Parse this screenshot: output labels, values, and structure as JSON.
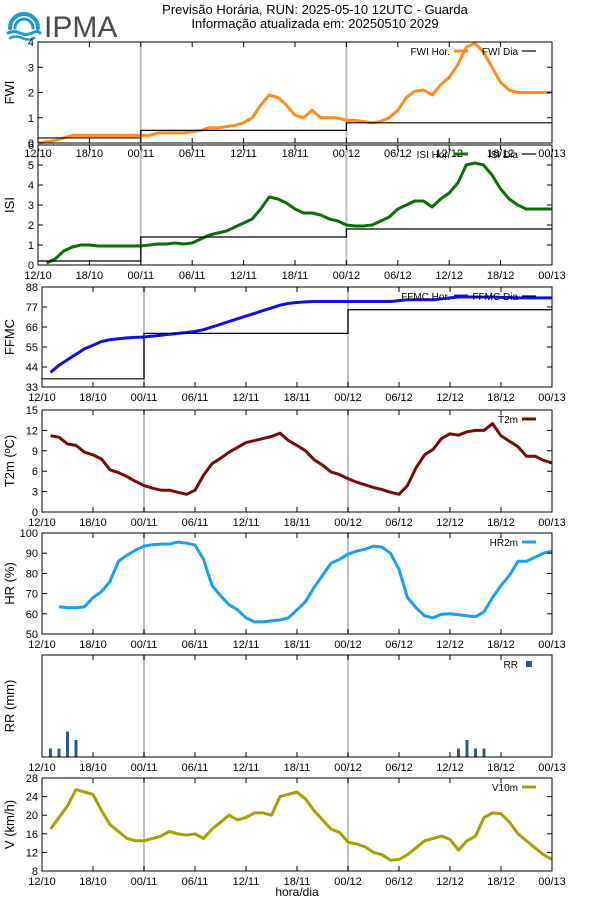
{
  "header": {
    "brand": "IPMA",
    "title": "Previsão Horária, RUN: 2025-05-10 12UTC - Guarda",
    "subtitle": "Informação atualizada em: 20250510 2029"
  },
  "colors": {
    "fwi": "#ff8c1a",
    "isi": "#0b6e0b",
    "ffmc": "#1010e0",
    "t2m": "#7a0a0a",
    "hr": "#18a0f0",
    "rr": "#2f5597",
    "v10m": "#a8a000",
    "daily": "#000000",
    "separator": "#c0c0c0",
    "logo": "#1b9ad6"
  },
  "x_ticks": [
    "12/10",
    "18/10",
    "00/11",
    "06/11",
    "12/11",
    "18/11",
    "00/12",
    "06/12",
    "12/12",
    "18/12",
    "00/13"
  ],
  "x_label": "hora/dia",
  "chart_data": [
    {
      "type": "line",
      "id": "fwi",
      "ylabel": "FWI",
      "ylim": [
        0,
        4
      ],
      "yticks": [
        "0",
        "1",
        "2",
        "3",
        "4"
      ],
      "series": [
        {
          "name": "FWI Hor.",
          "style": "line",
          "x": [
            12,
            13,
            14,
            15,
            16,
            17,
            18,
            19,
            20,
            21,
            22,
            23,
            24,
            25,
            26,
            27,
            28,
            29,
            30,
            31,
            32,
            33,
            34,
            35,
            36,
            37,
            38,
            39,
            40,
            41,
            42,
            43,
            44,
            45,
            46,
            47,
            48,
            49,
            50,
            51,
            52,
            53,
            54,
            55,
            56,
            57,
            58,
            59,
            60,
            61,
            62,
            63,
            64,
            65,
            66,
            67,
            68,
            69,
            70,
            71,
            72
          ],
          "values": [
            0,
            0.05,
            0.1,
            0.2,
            0.3,
            0.3,
            0.3,
            0.3,
            0.3,
            0.3,
            0.3,
            0.3,
            0.3,
            0.3,
            0.4,
            0.4,
            0.4,
            0.4,
            0.45,
            0.5,
            0.6,
            0.6,
            0.65,
            0.7,
            0.8,
            1.0,
            1.5,
            1.9,
            1.8,
            1.5,
            1.1,
            1.0,
            1.3,
            1.0,
            1.0,
            1.0,
            0.9,
            0.9,
            0.85,
            0.8,
            0.85,
            1.0,
            1.3,
            1.8,
            2.05,
            2.1,
            1.9,
            2.3,
            2.6,
            3.1,
            3.8,
            3.95,
            3.6,
            3.0,
            2.4,
            2.1,
            2.0,
            2.0,
            2.0,
            2.0,
            2.0
          ]
        },
        {
          "name": "FWI Dia",
          "style": "step",
          "steps": [
            [
              12,
              24,
              0.2
            ],
            [
              24,
              48,
              0.5
            ],
            [
              48,
              72,
              0.8
            ]
          ]
        }
      ]
    },
    {
      "type": "line",
      "id": "isi",
      "ylabel": "ISI",
      "ylim": [
        0,
        6
      ],
      "yticks": [
        "0",
        "1",
        "2",
        "3",
        "4",
        "5",
        "6"
      ],
      "series": [
        {
          "name": "ISI Hor.",
          "style": "line",
          "x": [
            13,
            14,
            15,
            16,
            17,
            18,
            19,
            20,
            21,
            22,
            23,
            24,
            25,
            26,
            27,
            28,
            29,
            30,
            31,
            32,
            33,
            34,
            35,
            36,
            37,
            38,
            39,
            40,
            41,
            42,
            43,
            44,
            45,
            46,
            47,
            48,
            49,
            50,
            51,
            52,
            53,
            54,
            55,
            56,
            57,
            58,
            59,
            60,
            61,
            62,
            63,
            64,
            65,
            66,
            67,
            68,
            69,
            70,
            71,
            72
          ],
          "values": [
            0.1,
            0.3,
            0.7,
            0.9,
            1.0,
            1.0,
            0.95,
            0.95,
            0.95,
            0.95,
            0.95,
            0.95,
            1.0,
            1.05,
            1.05,
            1.1,
            1.05,
            1.1,
            1.3,
            1.5,
            1.6,
            1.7,
            1.9,
            2.1,
            2.3,
            2.8,
            3.4,
            3.3,
            3.1,
            2.8,
            2.6,
            2.6,
            2.5,
            2.3,
            2.2,
            2.0,
            1.95,
            1.95,
            2.0,
            2.2,
            2.4,
            2.8,
            3.0,
            3.2,
            3.2,
            2.9,
            3.3,
            3.6,
            4.1,
            5.0,
            5.1,
            5.0,
            4.5,
            3.8,
            3.3,
            3.0,
            2.8,
            2.8,
            2.8,
            2.8
          ]
        },
        {
          "name": "ISI Dia",
          "style": "step",
          "steps": [
            [
              12,
              24,
              0.2
            ],
            [
              24,
              48,
              1.4
            ],
            [
              48,
              72,
              1.8
            ]
          ]
        }
      ]
    },
    {
      "type": "line",
      "id": "ffmc",
      "ylabel": "FFMC",
      "ylim": [
        33,
        88
      ],
      "yticks": [
        "33",
        "44",
        "55",
        "66",
        "77",
        "88"
      ],
      "series": [
        {
          "name": "FFMC Hor.",
          "style": "line",
          "x": [
            13,
            14,
            15,
            16,
            17,
            18,
            19,
            20,
            21,
            22,
            23,
            24,
            25,
            26,
            27,
            28,
            29,
            30,
            31,
            32,
            33,
            34,
            35,
            36,
            37,
            38,
            39,
            40,
            41,
            42,
            43,
            44,
            45,
            46,
            47,
            48,
            49,
            50,
            51,
            52,
            53,
            54,
            55,
            56,
            57,
            58,
            59,
            60,
            61,
            62,
            63,
            64,
            65,
            66,
            67,
            68,
            69,
            70,
            71,
            72
          ],
          "values": [
            41,
            45,
            48,
            51,
            54,
            56,
            58,
            59,
            59.5,
            60,
            60.3,
            60.5,
            61,
            61.5,
            62,
            62.5,
            63,
            63.5,
            64.5,
            66,
            67.5,
            69,
            70.5,
            72,
            73.5,
            75,
            76.5,
            78,
            79,
            79.5,
            79.8,
            80,
            80,
            80,
            80,
            80,
            80,
            80,
            80,
            80,
            80,
            80.5,
            81,
            81,
            81,
            81,
            81.5,
            82,
            82.5,
            82.5,
            82.5,
            82.5,
            82.5,
            82.3,
            82.2,
            82,
            82,
            82,
            82,
            82
          ]
        },
        {
          "name": "FFMC Dia",
          "style": "step",
          "steps": [
            [
              12,
              24,
              37.5
            ],
            [
              24,
              48,
              62.5
            ],
            [
              48,
              72,
              75.5
            ]
          ]
        }
      ]
    },
    {
      "type": "line",
      "id": "t2m",
      "ylabel": "T2m (ºC)",
      "ylim": [
        0,
        15
      ],
      "yticks": [
        "0",
        "3",
        "6",
        "9",
        "12",
        "15"
      ],
      "series": [
        {
          "name": "T2m",
          "style": "line",
          "x": [
            13,
            14,
            15,
            16,
            17,
            18,
            19,
            20,
            21,
            22,
            23,
            24,
            25,
            26,
            27,
            28,
            29,
            30,
            31,
            32,
            33,
            34,
            35,
            36,
            37,
            38,
            39,
            40,
            41,
            42,
            43,
            44,
            45,
            46,
            47,
            48,
            49,
            50,
            51,
            52,
            53,
            54,
            55,
            56,
            57,
            58,
            59,
            60,
            61,
            62,
            63,
            64,
            65,
            66,
            67,
            68,
            69,
            70,
            71,
            72
          ],
          "values": [
            11.2,
            11,
            10,
            9.8,
            8.8,
            8.4,
            7.8,
            6.2,
            5.8,
            5.2,
            4.5,
            3.9,
            3.5,
            3.2,
            3.2,
            2.9,
            2.6,
            3.2,
            5.4,
            7.1,
            7.9,
            8.8,
            9.5,
            10.2,
            10.5,
            10.8,
            11.1,
            11.6,
            10.5,
            9.8,
            9,
            7.7,
            6.9,
            5.9,
            5.5,
            4.9,
            4.4,
            4,
            3.6,
            3.3,
            2.9,
            2.6,
            3.9,
            6.5,
            8.4,
            9.2,
            10.8,
            11.5,
            11.3,
            11.8,
            12.0,
            12.0,
            13.0,
            11.2,
            10.4,
            9.6,
            8.2,
            8.2,
            7.6,
            7.2
          ]
        }
      ]
    },
    {
      "type": "line",
      "id": "hr",
      "ylabel": "HR (%)",
      "ylim": [
        50,
        100
      ],
      "yticks": [
        "50",
        "60",
        "70",
        "80",
        "90",
        "100"
      ],
      "series": [
        {
          "name": "HR2m",
          "style": "line",
          "x": [
            14,
            15,
            16,
            17,
            18,
            19,
            20,
            21,
            22,
            23,
            24,
            25,
            26,
            27,
            28,
            29,
            30,
            31,
            32,
            33,
            34,
            35,
            36,
            37,
            38,
            39,
            40,
            41,
            42,
            43,
            44,
            45,
            46,
            47,
            48,
            49,
            50,
            51,
            52,
            53,
            54,
            55,
            56,
            57,
            58,
            59,
            60,
            61,
            62,
            63,
            64,
            65,
            66,
            67,
            68,
            69,
            70,
            71,
            72
          ],
          "values": [
            63.5,
            63,
            63,
            63.5,
            68,
            71,
            76,
            86,
            89,
            91.5,
            93.5,
            94.2,
            94.5,
            94.5,
            95.5,
            95,
            94,
            87,
            74,
            69,
            64.5,
            62,
            58,
            56,
            56,
            56.5,
            57,
            58,
            62,
            66,
            73,
            79,
            85,
            87,
            89.5,
            91,
            92,
            93.5,
            93,
            90,
            82,
            68,
            63,
            59,
            58,
            59.8,
            60,
            59.5,
            59,
            58.5,
            61,
            68,
            74,
            79,
            86,
            86,
            88,
            90,
            91
          ]
        }
      ]
    },
    {
      "type": "bar",
      "id": "rr",
      "ylabel": "RR (mm)",
      "ylim": [
        0,
        0.6
      ],
      "yticks": [],
      "series": [
        {
          "name": "RR",
          "x": [
            13,
            14,
            15,
            16,
            61,
            62,
            63,
            64
          ],
          "values": [
            0.05,
            0.05,
            0.15,
            0.1,
            0.05,
            0.1,
            0.05,
            0.05
          ]
        }
      ]
    },
    {
      "type": "line",
      "id": "v10m",
      "ylabel": "V (km/h)",
      "ylim": [
        8,
        28
      ],
      "yticks": [
        "8",
        "12",
        "16",
        "20",
        "24",
        "28"
      ],
      "series": [
        {
          "name": "V10m",
          "style": "line",
          "x": [
            13,
            14,
            15,
            16,
            17,
            18,
            19,
            20,
            21,
            22,
            23,
            24,
            25,
            26,
            27,
            28,
            29,
            30,
            31,
            32,
            33,
            34,
            35,
            36,
            37,
            38,
            39,
            40,
            41,
            42,
            43,
            44,
            45,
            46,
            47,
            48,
            49,
            50,
            51,
            52,
            53,
            54,
            55,
            56,
            57,
            58,
            59,
            60,
            61,
            62,
            63,
            64,
            65,
            66,
            67,
            68,
            69,
            70,
            71,
            72
          ],
          "values": [
            17,
            19.5,
            22,
            25.5,
            25,
            24.5,
            21,
            18,
            16.5,
            15,
            14.5,
            14.5,
            15,
            15.5,
            16.5,
            16,
            15.7,
            16,
            15,
            17,
            18.5,
            20,
            19,
            19.5,
            20.5,
            20.5,
            20,
            24,
            24.5,
            25,
            23.5,
            21,
            19,
            17,
            16.3,
            14.2,
            13.8,
            13.2,
            12,
            11.5,
            10.3,
            10.5,
            11.5,
            13,
            14.5,
            15,
            15.5,
            14.8,
            12.5,
            14.5,
            15.5,
            19.5,
            20.5,
            20.3,
            18.5,
            16,
            14.5,
            13,
            11.5,
            10.5
          ]
        }
      ]
    }
  ]
}
